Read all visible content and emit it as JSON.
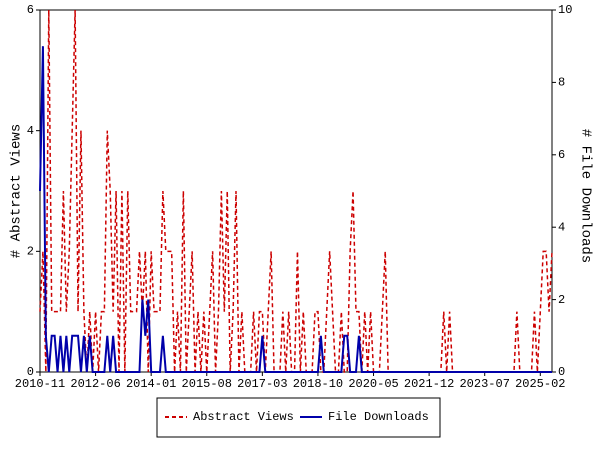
{
  "chart_data": {
    "type": "line",
    "categories": [
      "2010-11",
      null,
      null,
      null,
      null,
      null,
      null,
      null,
      null,
      null,
      null,
      null,
      null,
      null,
      null,
      null,
      null,
      null,
      null,
      "2012-06",
      null,
      null,
      null,
      null,
      null,
      null,
      null,
      null,
      null,
      null,
      null,
      null,
      null,
      null,
      null,
      null,
      null,
      null,
      "2014-01",
      null,
      null,
      null,
      null,
      null,
      null,
      null,
      null,
      null,
      null,
      null,
      null,
      null,
      null,
      null,
      null,
      null,
      null,
      "2015-08",
      null,
      null,
      null,
      null,
      null,
      null,
      null,
      null,
      null,
      null,
      null,
      null,
      null,
      null,
      null,
      null,
      null,
      null,
      "2017-03",
      null,
      null,
      null,
      null,
      null,
      null,
      null,
      null,
      null,
      null,
      null,
      null,
      null,
      null,
      null,
      null,
      null,
      null,
      "2018-10",
      null,
      null,
      null,
      null,
      null,
      null,
      null,
      null,
      null,
      null,
      null,
      null,
      null,
      null,
      null,
      null,
      null,
      null,
      "2020-05",
      null,
      null,
      null,
      null,
      null,
      null,
      null,
      null,
      null,
      null,
      null,
      null,
      null,
      null,
      null,
      null,
      null,
      null,
      "2021-12",
      null,
      null,
      null,
      null,
      null,
      null,
      null,
      null,
      null,
      null,
      null,
      null,
      null,
      null,
      null,
      null,
      null,
      null,
      "2023-07",
      null,
      null,
      null,
      null,
      null,
      null,
      null,
      null,
      null,
      null,
      null,
      null,
      null,
      null,
      null,
      null,
      null,
      null,
      "2025-02",
      null,
      null,
      null,
      null
    ],
    "series": [
      {
        "name": "Abstract Views",
        "color": "#cc0000",
        "style": "dashed",
        "values": [
          1,
          2,
          0,
          6,
          1,
          1,
          1,
          1,
          3,
          1,
          2,
          4,
          6,
          1,
          4,
          1,
          0,
          1,
          0,
          1,
          0,
          1,
          1,
          4,
          3,
          1,
          3,
          0,
          3,
          0,
          3,
          1,
          1,
          1,
          2,
          1,
          2,
          0,
          2,
          1,
          1,
          1,
          3,
          2,
          2,
          2,
          0,
          1,
          0,
          3,
          0,
          1,
          2,
          0,
          1,
          0,
          1,
          0,
          1,
          2,
          0,
          1,
          3,
          1,
          3,
          0,
          1,
          3,
          0,
          1,
          0,
          0,
          0,
          1,
          0,
          1,
          1,
          0,
          1,
          2,
          0,
          0,
          0,
          1,
          0,
          1,
          0,
          0,
          2,
          0,
          1,
          0,
          0,
          0,
          1,
          1,
          0,
          0,
          1,
          2,
          1,
          0,
          0,
          1,
          0,
          0,
          2,
          3,
          1,
          1,
          0,
          1,
          0,
          1,
          0,
          0,
          0,
          1,
          2,
          0,
          0,
          0,
          0,
          0,
          0,
          0,
          0,
          0,
          0,
          0,
          0,
          0,
          0,
          0,
          0,
          0,
          0,
          0,
          1,
          0,
          1,
          0,
          0,
          0,
          0,
          0,
          0,
          0,
          0,
          0,
          0,
          0,
          0,
          0,
          0,
          0,
          0,
          0,
          0,
          0,
          0,
          0,
          0,
          1,
          0,
          0,
          0,
          0,
          0,
          1,
          0,
          1,
          2,
          2,
          1,
          2
        ]
      },
      {
        "name": "File Downloads",
        "color": "#0000aa",
        "style": "solid",
        "axis": "y2",
        "values": [
          5,
          9,
          1,
          0,
          1,
          1,
          0,
          1,
          0,
          1,
          0,
          1,
          1,
          1,
          0,
          1,
          0,
          1,
          0,
          0,
          0,
          0,
          0,
          1,
          0,
          1,
          0,
          0,
          0,
          0,
          0,
          0,
          0,
          0,
          0,
          2,
          1,
          2,
          0,
          0,
          0,
          0,
          1,
          0,
          0,
          0,
          0,
          0,
          0,
          0,
          0,
          0,
          0,
          0,
          0,
          0,
          0,
          0,
          0,
          0,
          0,
          0,
          0,
          0,
          0,
          0,
          0,
          0,
          0,
          0,
          0,
          0,
          0,
          0,
          0,
          0,
          1,
          0,
          0,
          0,
          0,
          0,
          0,
          0,
          0,
          0,
          0,
          0,
          0,
          0,
          0,
          0,
          0,
          0,
          0,
          0,
          1,
          0,
          0,
          0,
          0,
          0,
          0,
          0,
          1,
          1,
          0,
          0,
          0,
          1,
          0,
          0,
          0,
          0,
          0,
          0,
          0,
          0,
          0,
          0,
          0,
          0,
          0,
          0,
          0,
          0,
          0,
          0,
          0,
          0,
          0,
          0,
          0,
          0,
          0,
          0,
          0,
          0,
          0,
          0,
          0,
          0,
          0,
          0,
          0,
          0,
          0,
          0,
          0,
          0,
          0,
          0,
          0,
          0,
          0,
          0,
          0,
          0,
          0,
          0,
          0,
          0,
          0,
          0,
          0,
          0,
          0,
          0,
          0,
          0,
          0,
          0,
          0,
          0,
          0,
          0
        ]
      }
    ],
    "ylabel": "# Abstract Views",
    "y2label": "# File Downloads",
    "ylim": [
      0,
      6
    ],
    "yticks": [
      0,
      2,
      4,
      6
    ],
    "y2lim": [
      0,
      10
    ],
    "y2ticks": [
      0,
      2,
      4,
      6,
      8,
      10
    ],
    "legend": "bottom"
  }
}
